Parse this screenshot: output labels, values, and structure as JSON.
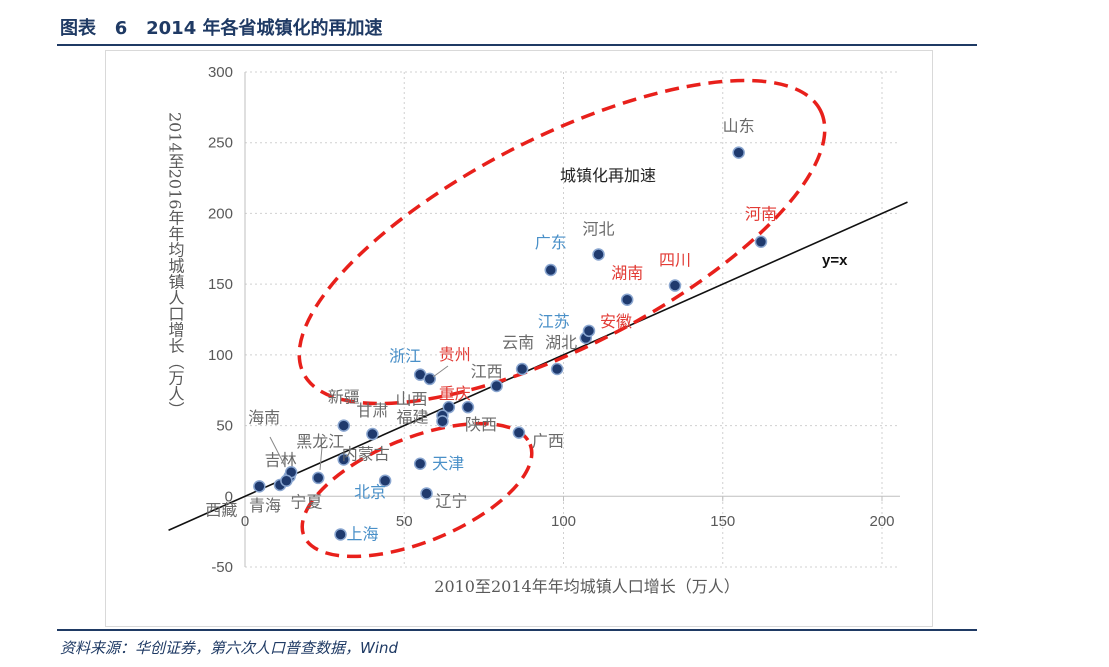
{
  "header": {
    "title": "图表   6   2014 年各省城镇化的再加速"
  },
  "footer": {
    "source": "资料来源：华创证券，第六次人口普查数据，Wind"
  },
  "colors": {
    "point": "#1f3a6e",
    "blue_label": "#4a90c8",
    "red_label": "#e23b35",
    "gray_label": "#6b6b6b",
    "ellipse": "#e8201b",
    "title": "#1f3a64"
  },
  "chart_data": {
    "type": "scatter",
    "title": "",
    "xlabel": "2010至2014年年均城镇人口增长（万人）",
    "ylabel": "2014至2016年年均城镇人口增长（万人）",
    "xlim": [
      0,
      200
    ],
    "ylim": [
      -50,
      300
    ],
    "xticks": [
      "0",
      "50",
      "100",
      "150",
      "200"
    ],
    "yticks": [
      "300",
      "250",
      "200",
      "150",
      "100",
      "50",
      "0",
      "-50"
    ],
    "grid": "dotted",
    "reference_line": {
      "label": "y=x",
      "slope": 1,
      "intercept": 0
    },
    "annotations": [
      "城镇化再加速"
    ],
    "points": [
      {
        "name": "山东",
        "x": 155,
        "y": 243,
        "label_color": "gray"
      },
      {
        "name": "河南",
        "x": 162,
        "y": 180,
        "label_color": "red"
      },
      {
        "name": "河北",
        "x": 111,
        "y": 171,
        "label_color": "gray"
      },
      {
        "name": "广东",
        "x": 96,
        "y": 160,
        "label_color": "blue"
      },
      {
        "name": "湖南",
        "x": 120,
        "y": 139,
        "label_color": "red"
      },
      {
        "name": "四川",
        "x": 135,
        "y": 149,
        "label_color": "red"
      },
      {
        "name": "江苏",
        "x": 107,
        "y": 112,
        "label_color": "blue"
      },
      {
        "name": "安徽",
        "x": 108,
        "y": 117,
        "label_color": "red"
      },
      {
        "name": "云南",
        "x": 87,
        "y": 90,
        "label_color": "gray"
      },
      {
        "name": "湖北",
        "x": 98,
        "y": 90,
        "label_color": "gray"
      },
      {
        "name": "江西",
        "x": 79,
        "y": 78,
        "label_color": "gray"
      },
      {
        "name": "浙江",
        "x": 55,
        "y": 86,
        "label_color": "blue"
      },
      {
        "name": "贵州",
        "x": 58,
        "y": 83,
        "label_color": "red"
      },
      {
        "name": "重庆",
        "x": 64,
        "y": 63,
        "label_color": "red"
      },
      {
        "name": "陕西",
        "x": 70,
        "y": 63,
        "label_color": "gray"
      },
      {
        "name": "福建",
        "x": 62,
        "y": 57,
        "label_color": "gray"
      },
      {
        "name": "山西",
        "x": 62,
        "y": 53,
        "label_color": "gray"
      },
      {
        "name": "甘肃",
        "x": 40,
        "y": 44,
        "label_color": "gray"
      },
      {
        "name": "新疆",
        "x": 31,
        "y": 50,
        "label_color": "gray"
      },
      {
        "name": "广西",
        "x": 86,
        "y": 45,
        "label_color": "gray"
      },
      {
        "name": "天津",
        "x": 55,
        "y": 23,
        "label_color": "blue"
      },
      {
        "name": "辽宁",
        "x": 57,
        "y": 2,
        "label_color": "gray"
      },
      {
        "name": "北京",
        "x": 44,
        "y": 11,
        "label_color": "blue"
      },
      {
        "name": "上海",
        "x": 30,
        "y": -27,
        "label_color": "blue"
      },
      {
        "name": "内蒙古",
        "x": 31,
        "y": 26,
        "label_color": "gray"
      },
      {
        "name": "黑龙江",
        "x": 23,
        "y": 13,
        "label_color": "gray"
      },
      {
        "name": "吉林",
        "x": 14,
        "y": 14,
        "label_color": "gray"
      },
      {
        "name": "海南",
        "x": 14.5,
        "y": 17,
        "label_color": "gray"
      },
      {
        "name": "西藏",
        "x": 4.5,
        "y": 7,
        "label_color": "gray"
      },
      {
        "name": "青海",
        "x": 11,
        "y": 8,
        "label_color": "gray"
      },
      {
        "name": "宁夏",
        "x": 13,
        "y": 11,
        "label_color": "gray"
      }
    ]
  }
}
